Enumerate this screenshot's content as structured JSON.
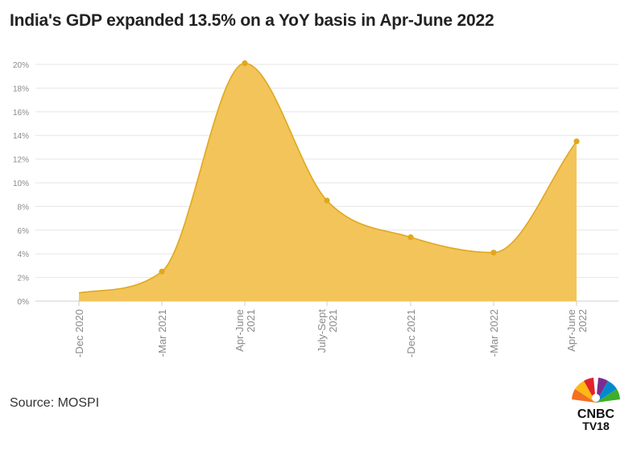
{
  "title": "India's GDP expanded 13.5% on a YoY basis in Apr-June 2022",
  "source": "Source: MOSPI",
  "logo": {
    "line1": "CNBC",
    "line2": "TV18"
  },
  "colors": {
    "area": "#f2c45a",
    "line": "#e0a81c",
    "marker": "#e0a81c",
    "grid": "#e6e6e6"
  },
  "chart_data": {
    "type": "area",
    "title": "India's GDP expanded 13.5% on a YoY basis in Apr-June 2022",
    "xlabel": "",
    "ylabel": "",
    "categories": [
      [
        "-Dec 2020"
      ],
      [
        "-Mar 2021"
      ],
      [
        "Apr-June",
        "2021"
      ],
      [
        "July-Sept",
        "2021"
      ],
      [
        "-Dec 2021"
      ],
      [
        "-Mar 2022"
      ],
      [
        "Apr-June",
        "2022"
      ]
    ],
    "values": [
      0.7,
      2.5,
      20.1,
      8.5,
      5.4,
      4.1,
      13.5
    ],
    "ylim": [
      0,
      20
    ],
    "yticks": [
      0,
      2,
      4,
      6,
      8,
      10,
      12,
      14,
      16,
      18,
      20
    ],
    "ytick_suffix": "%",
    "grid": true,
    "markers": [
      false,
      true,
      true,
      true,
      true,
      true,
      true
    ]
  }
}
